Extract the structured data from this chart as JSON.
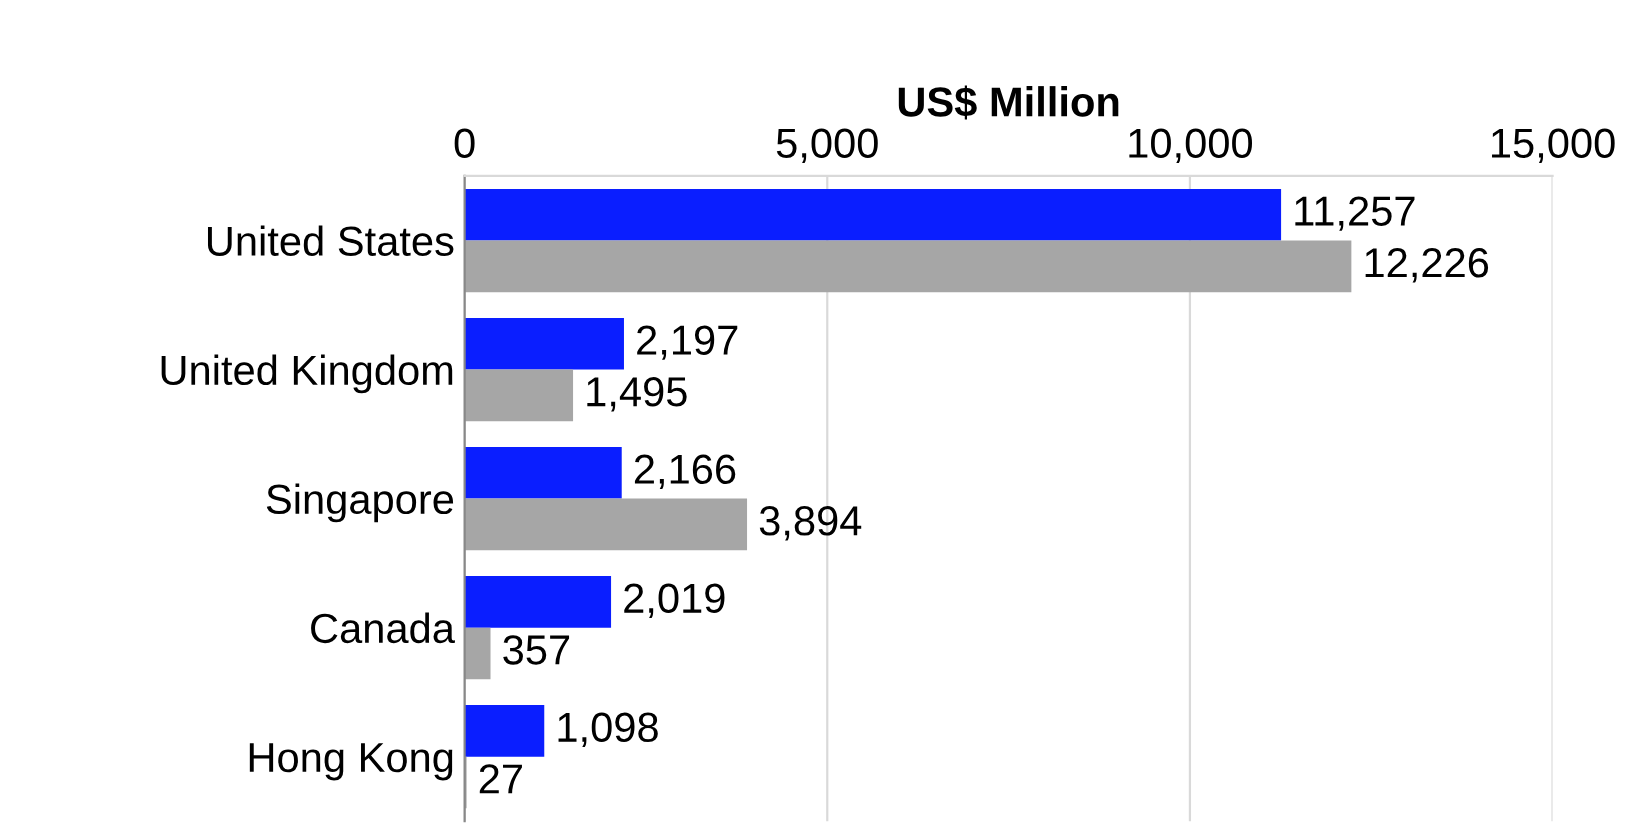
{
  "chart_data": {
    "type": "bar",
    "orientation": "horizontal",
    "xlabel": "US$ Million",
    "categories": [
      "United States",
      "United Kingdom",
      "Singapore",
      "Canada",
      "Hong Kong"
    ],
    "series": [
      {
        "color": "#0a1eff",
        "values": [
          11257,
          2197,
          2166,
          2019,
          1098
        ],
        "value_labels": [
          "11,257",
          "2,197",
          "2,166",
          "2,019",
          "1,098"
        ]
      },
      {
        "color": "#a6a6a6",
        "values": [
          12226,
          1495,
          3894,
          357,
          27
        ],
        "value_labels": [
          "12,226",
          "1,495",
          "3,894",
          "357",
          "27"
        ]
      }
    ],
    "xlim": [
      0,
      15000
    ],
    "xticks": [
      0,
      {
        "value": 5000,
        "label": "5,000"
      },
      {
        "value": 10000,
        "label": "10,000"
      },
      {
        "value": 15000,
        "label": "15,000"
      }
    ],
    "grid": "x",
    "legend": false
  }
}
